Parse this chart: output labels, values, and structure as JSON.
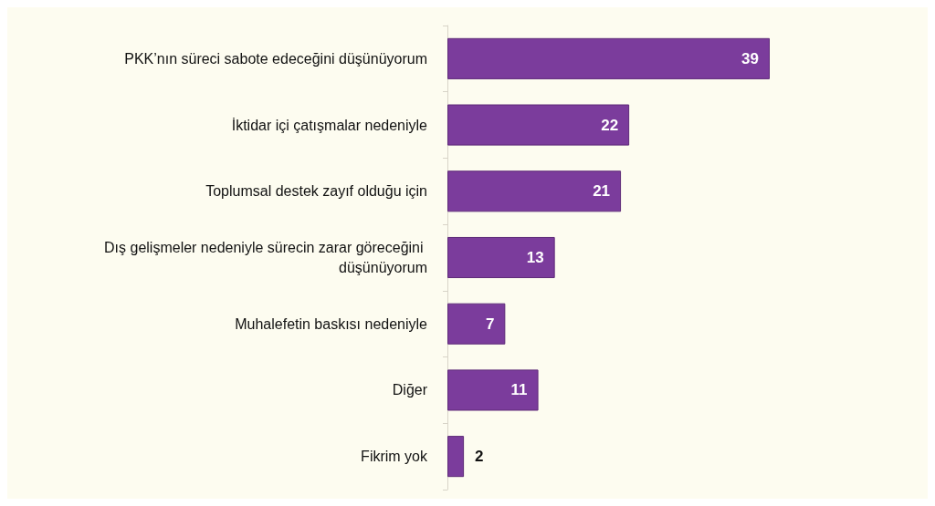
{
  "chart_data": {
    "type": "bar",
    "orientation": "horizontal",
    "data_labels": true,
    "categories": [
      "PKK’nın süreci sabote edeceğini düşünüyorum",
      "İktidar içi çatışmalar nedeniyle",
      "Toplumsal destek zayıf olduğu için",
      "Dış gelişmeler nedeniyle sürecin zarar göreceğini düşünüyorum",
      "Muhalefetin baskısı nedeniyle",
      "Diğer",
      "Fikrim yok"
    ],
    "values": [
      39,
      22,
      21,
      13,
      7,
      11,
      2
    ],
    "color": "#7b3c9c"
  }
}
